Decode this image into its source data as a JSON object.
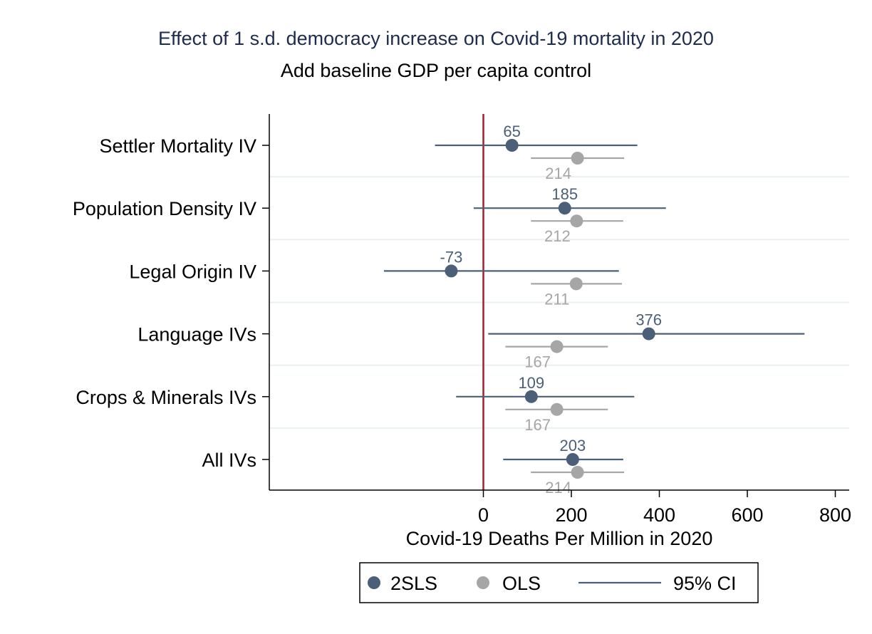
{
  "chart_data": {
    "type": "scatter",
    "title": "Effect of 1 s.d. democracy increase on Covid-19 mortality in 2020",
    "subtitle": "Add baseline GDP per capita control",
    "xlabel": "Covid-19 Deaths Per Million in 2020",
    "ylabel": "",
    "xlim": [
      -225,
      825
    ],
    "xticks": [
      0,
      200,
      400,
      600,
      800
    ],
    "reference_line_x": 0,
    "grid": "horizontal",
    "legend_position": "bottom",
    "categories": [
      "Settler Mortality IV",
      "Population Density IV",
      "Legal Origin IV",
      "Language IVs",
      "Crops & Minerals IVs",
      "All IVs"
    ],
    "series": [
      {
        "name": "2SLS",
        "color": "#4b6078",
        "values": [
          65,
          185,
          -73,
          376,
          109,
          203
        ],
        "labels": [
          "65",
          "185",
          "-73",
          "376",
          "109",
          "203"
        ],
        "ci_low": [
          -110,
          -22,
          -226,
          11,
          -62,
          45
        ],
        "ci_high": [
          350,
          415,
          308,
          730,
          343,
          318
        ]
      },
      {
        "name": "OLS",
        "color": "#a6a6a6",
        "values": [
          214,
          212,
          211,
          167,
          167,
          214
        ],
        "labels": [
          "214",
          "212",
          "211",
          "167",
          "167",
          "214"
        ],
        "ci_low": [
          108,
          108,
          108,
          50,
          50,
          108
        ],
        "ci_high": [
          320,
          318,
          315,
          283,
          283,
          320
        ]
      }
    ],
    "legend": {
      "items": [
        {
          "label": "2SLS",
          "marker": "circle",
          "color": "#4b6078"
        },
        {
          "label": "OLS",
          "marker": "circle",
          "color": "#a6a6a6"
        },
        {
          "label": "95% CI",
          "marker": "line",
          "color": "#4b6078"
        }
      ]
    }
  },
  "colors": {
    "title": "#1e2c4d",
    "reference_line": "#a02030",
    "grid": "#eaf0f2",
    "axis": "#000000"
  }
}
